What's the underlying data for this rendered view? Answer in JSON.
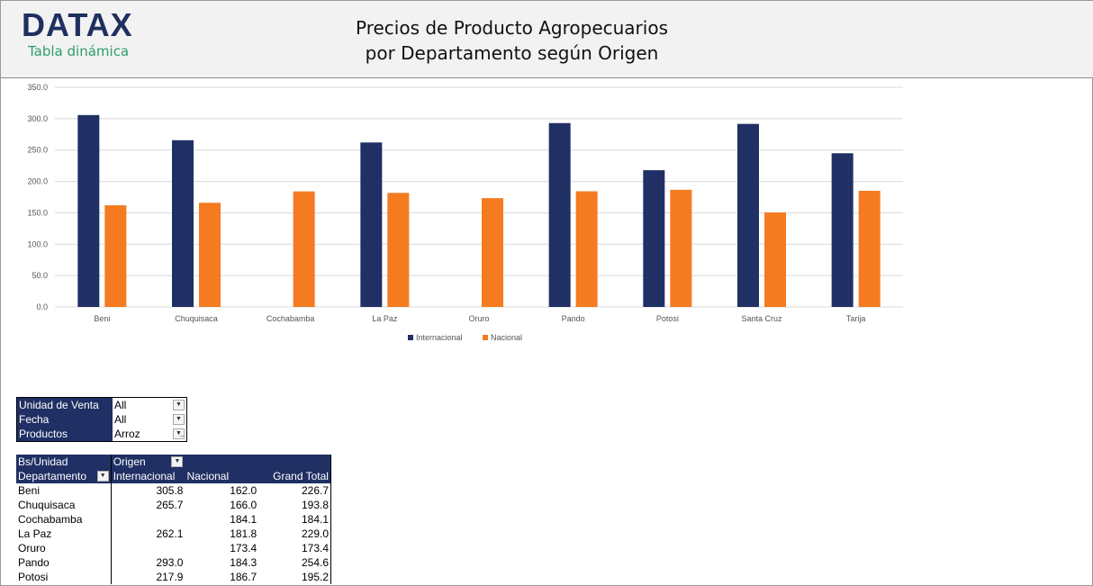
{
  "header": {
    "logo": "DATAX",
    "subtitle": "Tabla dinámica",
    "title_line1": "Precios de Producto Agropecuarios",
    "title_line2": "por Departamento según Origen"
  },
  "chart_data": {
    "type": "bar",
    "categories": [
      "Beni",
      "Chuquisaca",
      "Cochabamba",
      "La Paz",
      "Oruro",
      "Pando",
      "Potosi",
      "Santa Cruz",
      "Tarija"
    ],
    "series": [
      {
        "name": "Internacional",
        "color": "#203064",
        "values": [
          305.8,
          265.7,
          null,
          262.1,
          null,
          293.0,
          217.9,
          291.7,
          244.9
        ]
      },
      {
        "name": "Nacional",
        "color": "#f47b20",
        "values": [
          162.0,
          166.0,
          184.1,
          181.8,
          173.4,
          184.3,
          186.7,
          150.6,
          185.1
        ]
      }
    ],
    "yticks": [
      "0.0",
      "50.0",
      "100.0",
      "150.0",
      "200.0",
      "250.0",
      "300.0",
      "350.0"
    ],
    "ylim": [
      0,
      350
    ],
    "grid": true,
    "legend": "bottom"
  },
  "filters": [
    {
      "label": "Unidad de Venta",
      "value": "All",
      "icon": "dropdown-icon"
    },
    {
      "label": "Fecha",
      "value": "All",
      "icon": "dropdown-icon"
    },
    {
      "label": "Productos",
      "value": "Arroz",
      "icon": "filter-icon"
    }
  ],
  "pivot": {
    "corner": "Bs/Unidad",
    "col_field": "Origen",
    "row_field": "Departamento",
    "columns": [
      "Internacional",
      "Nacional",
      "Grand Total"
    ],
    "rows": [
      [
        "Beni",
        "305.8",
        "162.0",
        "226.7"
      ],
      [
        "Chuquisaca",
        "265.7",
        "166.0",
        "193.8"
      ],
      [
        "Cochabamba",
        "",
        "184.1",
        "184.1"
      ],
      [
        "La Paz",
        "262.1",
        "181.8",
        "229.0"
      ],
      [
        "Oruro",
        "",
        "173.4",
        "173.4"
      ],
      [
        "Pando",
        "293.0",
        "184.3",
        "254.6"
      ],
      [
        "Potosi",
        "217.9",
        "186.7",
        "195.2"
      ]
    ]
  }
}
